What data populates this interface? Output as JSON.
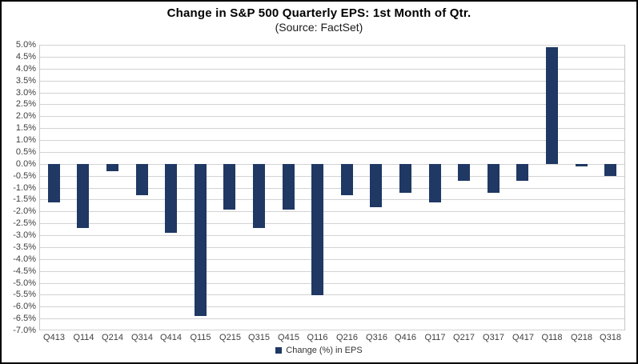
{
  "title": "Change in S&P 500 Quarterly EPS: 1st Month of Qtr.",
  "subtitle": "(Source: FactSet)",
  "legend": {
    "label": "Change (%) in EPS",
    "swatch_icon": "filled-square"
  },
  "colors": {
    "bar": "#1f3864",
    "gridline": "#d2d2d2",
    "axis_text": "#404040",
    "frame_border": "#000000"
  },
  "chart_data": {
    "type": "bar",
    "title": "Change in S&P 500 Quarterly EPS: 1st Month of Qtr.",
    "subtitle": "(Source: FactSet)",
    "categories": [
      "Q413",
      "Q114",
      "Q214",
      "Q314",
      "Q414",
      "Q115",
      "Q215",
      "Q315",
      "Q415",
      "Q116",
      "Q216",
      "Q316",
      "Q416",
      "Q117",
      "Q217",
      "Q317",
      "Q417",
      "Q118",
      "Q218",
      "Q318"
    ],
    "values": [
      -1.6,
      -2.7,
      -0.3,
      -1.3,
      -2.9,
      -6.4,
      -1.9,
      -2.7,
      -1.9,
      -5.5,
      -1.3,
      -1.8,
      -1.2,
      -1.6,
      -0.7,
      -1.2,
      -0.7,
      4.9,
      -0.1,
      -0.5
    ],
    "unit": "%",
    "xlabel": "",
    "ylabel": "",
    "ylim": [
      -7.0,
      5.0
    ],
    "ytick_step": 0.5,
    "ytick_format": "one_decimal_percent",
    "grid": true,
    "legend_entries": [
      "Change (%) in EPS"
    ],
    "legend_position": "bottom",
    "bar_color": "#1f3864"
  }
}
